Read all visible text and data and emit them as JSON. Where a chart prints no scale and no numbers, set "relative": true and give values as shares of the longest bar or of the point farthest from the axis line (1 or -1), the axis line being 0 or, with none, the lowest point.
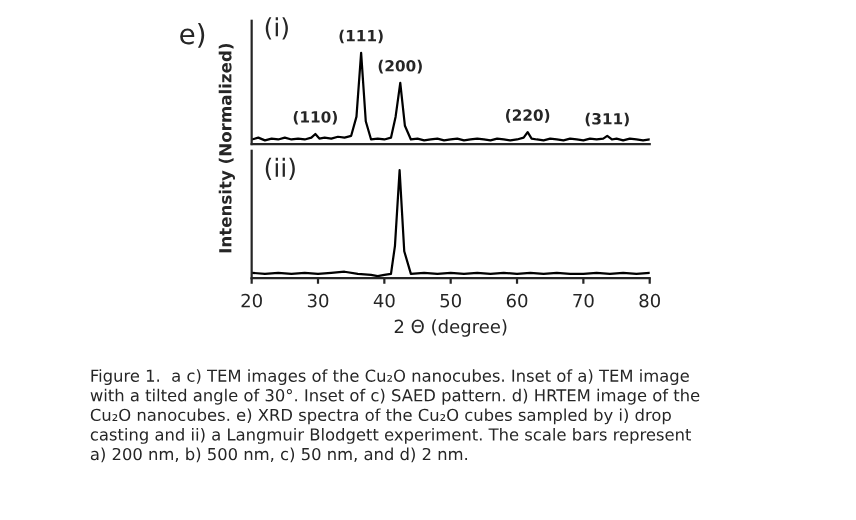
{
  "chart_data": [
    {
      "type": "line",
      "relative": true,
      "ylabel": "Intensity (Normalized)",
      "xlim": [
        20,
        80
      ],
      "tick_labels": false,
      "annotations": [
        "e)",
        "(i)",
        {
          "text": "(110)",
          "x": 29.6,
          "y": 0.11
        },
        {
          "text": "(111)",
          "x": 36.5,
          "y": 1
        },
        {
          "text": "(200)",
          "x": 42.4,
          "y": 0.67
        },
        {
          "text": "(220)",
          "x": 61.6,
          "y": 0.13
        },
        {
          "text": "(311)",
          "x": 73.6,
          "y": 0.09
        }
      ],
      "series": [
        {
          "color": "#000000",
          "x": [
            20,
            21,
            22,
            23,
            24,
            25,
            26,
            27,
            28,
            29,
            29.6,
            30.2,
            31,
            32,
            33,
            34,
            35,
            35.8,
            36.5,
            37.2,
            38,
            39,
            40,
            41,
            41.7,
            42.4,
            43.1,
            44,
            45,
            46,
            47,
            48,
            49,
            50,
            51,
            52,
            53,
            54,
            55,
            56,
            57,
            58,
            59,
            60,
            61,
            61.6,
            62.2,
            63,
            64,
            65,
            66,
            67,
            68,
            69,
            70,
            71,
            72,
            73,
            73.6,
            74.3,
            75,
            76,
            77,
            78,
            79,
            80
          ],
          "values": [
            0.05,
            0.07,
            0.04,
            0.06,
            0.05,
            0.07,
            0.05,
            0.06,
            0.05,
            0.07,
            0.11,
            0.06,
            0.07,
            0.06,
            0.08,
            0.07,
            0.09,
            0.3,
            1,
            0.25,
            0.05,
            0.06,
            0.05,
            0.07,
            0.3,
            0.67,
            0.2,
            0.05,
            0.06,
            0.04,
            0.05,
            0.06,
            0.04,
            0.05,
            0.06,
            0.04,
            0.05,
            0.06,
            0.05,
            0.04,
            0.06,
            0.05,
            0.04,
            0.05,
            0.07,
            0.13,
            0.06,
            0.05,
            0.04,
            0.06,
            0.05,
            0.04,
            0.06,
            0.05,
            0.04,
            0.06,
            0.05,
            0.06,
            0.09,
            0.05,
            0.06,
            0.04,
            0.06,
            0.05,
            0.04,
            0.05
          ]
        }
      ]
    },
    {
      "type": "line",
      "relative": true,
      "xlabel": "2 Θ (degree)",
      "xlim": [
        20,
        80
      ],
      "xticks": [
        20,
        30,
        40,
        50,
        60,
        70,
        80
      ],
      "tick_labels": "x",
      "annotations": [
        "(ii)",
        "Figure 1.  a c) TEM images of the Cu₂O nanocubes. Inset of a) TEM image\nwith a tilted angle of 30°. Inset of c) SAED pattern. d) HRTEM image of the\nCu₂O nanocubes. e) XRD spectra of the Cu₂O cubes sampled by i) drop\ncasting and ii) a Langmuir Blodgett experiment. The scale bars represent\na) 200 nm, b) 500 nm, c) 50 nm, and d) 2 nm."
      ],
      "series": [
        {
          "color": "#000000",
          "x": [
            20,
            22,
            24,
            26,
            28,
            30,
            32,
            34,
            36,
            38,
            39,
            40,
            41,
            41.6,
            42.3,
            43,
            44,
            46,
            48,
            50,
            52,
            54,
            56,
            58,
            60,
            62,
            64,
            66,
            68,
            70,
            72,
            74,
            76,
            78,
            80
          ],
          "values": [
            0.05,
            0.04,
            0.05,
            0.04,
            0.05,
            0.04,
            0.05,
            0.06,
            0.04,
            0.03,
            0.02,
            0.03,
            0.04,
            0.3,
            1,
            0.25,
            0.04,
            0.05,
            0.04,
            0.05,
            0.04,
            0.05,
            0.04,
            0.05,
            0.04,
            0.05,
            0.04,
            0.05,
            0.04,
            0.04,
            0.05,
            0.04,
            0.05,
            0.04,
            0.05
          ]
        }
      ]
    }
  ]
}
